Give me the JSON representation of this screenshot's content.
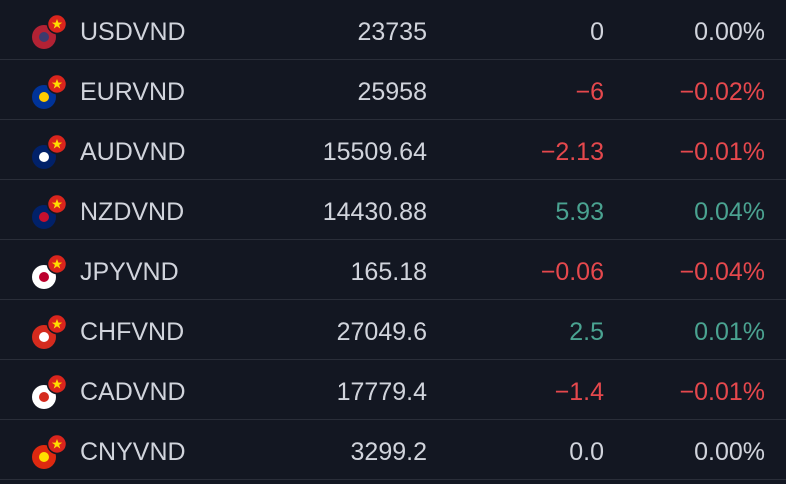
{
  "table": {
    "rows": [
      [
        "USDVND",
        "23735",
        "0",
        "0.00%"
      ],
      [
        "EURVND",
        "25958",
        "−6",
        "−0.02%"
      ],
      [
        "AUDVND",
        "15509.64",
        "−2.13",
        "−0.01%"
      ],
      [
        "NZDVND",
        "14430.88",
        "5.93",
        "0.04%"
      ],
      [
        "JPYVND",
        "165.18",
        "−0.06",
        "−0.04%"
      ],
      [
        "CHFVND",
        "27049.6",
        "2.5",
        "0.01%"
      ],
      [
        "CADVND",
        "17779.4",
        "−1.4",
        "−0.01%"
      ],
      [
        "CNYVND",
        "3299.2",
        "0.0",
        "0.00%"
      ]
    ]
  }
}
